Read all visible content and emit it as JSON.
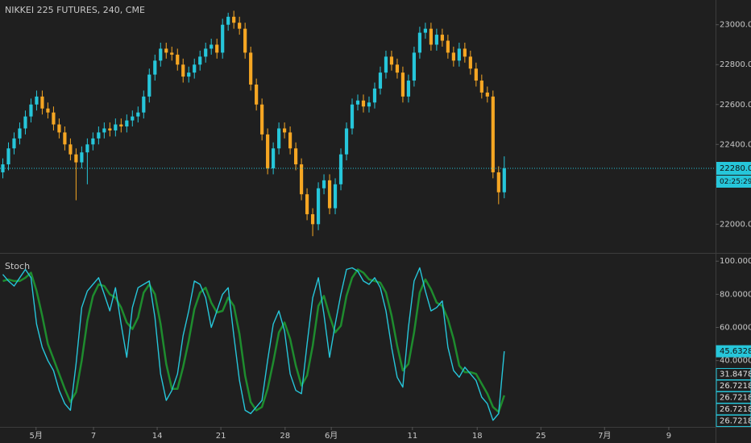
{
  "chart_data": [
    {
      "type": "candlestick",
      "title": "NIKKEI 225 FUTURES, 240, CME",
      "open": [
        22260,
        22300,
        22380,
        22430,
        22480,
        22540,
        22600,
        22640,
        22580,
        22560,
        22500,
        22460,
        22400,
        22350,
        22310,
        22360,
        22400,
        22430,
        22460,
        22480,
        22470,
        22500,
        22490,
        22520,
        22540,
        22560,
        22640,
        22750,
        22820,
        22880,
        22860,
        22850,
        22800,
        22740,
        22760,
        22800,
        22840,
        22880,
        22900,
        22860,
        23000,
        23040,
        23010,
        22980,
        22860,
        22700,
        22600,
        22450,
        22280,
        22380,
        22480,
        22460,
        22380,
        22300,
        22150,
        22050,
        22000,
        22180,
        22220,
        22080,
        22200,
        22350,
        22480,
        22600,
        22620,
        22590,
        22610,
        22680,
        22760,
        22840,
        22800,
        22760,
        22640,
        22720,
        22860,
        22960,
        22980,
        22900,
        22950,
        22920,
        22860,
        22820,
        22880,
        22840,
        22780,
        22720,
        22660,
        22640,
        22260,
        22160
      ],
      "high": [
        22330,
        22410,
        22460,
        22510,
        22570,
        22630,
        22670,
        22670,
        22610,
        22590,
        22530,
        22490,
        22430,
        22380,
        22390,
        22430,
        22460,
        22490,
        22510,
        22510,
        22530,
        22530,
        22550,
        22570,
        22590,
        22670,
        22780,
        22850,
        22910,
        22910,
        22890,
        22880,
        22830,
        22790,
        22830,
        22870,
        22910,
        22930,
        22930,
        23030,
        23060,
        23070,
        23040,
        23010,
        22890,
        22730,
        22630,
        22480,
        22410,
        22510,
        22510,
        22490,
        22410,
        22330,
        22180,
        22080,
        22210,
        22250,
        22250,
        22230,
        22380,
        22510,
        22630,
        22650,
        22650,
        22640,
        22710,
        22790,
        22870,
        22870,
        22830,
        22790,
        22750,
        22890,
        22990,
        23010,
        23010,
        22980,
        22980,
        22950,
        22890,
        22910,
        22910,
        22870,
        22810,
        22750,
        22690,
        22670,
        22290,
        22340
      ],
      "low": [
        22230,
        22270,
        22350,
        22400,
        22450,
        22510,
        22570,
        22550,
        22530,
        22470,
        22430,
        22370,
        22320,
        22120,
        22280,
        22200,
        22370,
        22400,
        22430,
        22440,
        22440,
        22460,
        22460,
        22490,
        22510,
        22530,
        22610,
        22720,
        22790,
        22830,
        22820,
        22770,
        22710,
        22710,
        22730,
        22770,
        22810,
        22850,
        22830,
        22830,
        22970,
        22980,
        22950,
        22830,
        22670,
        22570,
        22420,
        22250,
        22250,
        22350,
        22430,
        22350,
        22270,
        22120,
        22020,
        21940,
        21970,
        22150,
        22050,
        22050,
        22170,
        22320,
        22450,
        22570,
        22560,
        22560,
        22580,
        22650,
        22730,
        22770,
        22730,
        22610,
        22610,
        22690,
        22830,
        22930,
        22870,
        22870,
        22890,
        22830,
        22790,
        22790,
        22810,
        22750,
        22690,
        22630,
        22610,
        22230,
        22100,
        22130
      ],
      "close": [
        22300,
        22380,
        22430,
        22480,
        22540,
        22600,
        22640,
        22580,
        22560,
        22500,
        22460,
        22400,
        22350,
        22310,
        22360,
        22400,
        22430,
        22460,
        22480,
        22470,
        22500,
        22490,
        22520,
        22540,
        22560,
        22640,
        22750,
        22820,
        22880,
        22860,
        22850,
        22800,
        22740,
        22760,
        22800,
        22840,
        22880,
        22900,
        22860,
        23000,
        23040,
        23010,
        22980,
        22860,
        22700,
        22600,
        22450,
        22280,
        22380,
        22480,
        22460,
        22380,
        22300,
        22150,
        22050,
        22000,
        22180,
        22220,
        22080,
        22200,
        22350,
        22480,
        22600,
        22620,
        22590,
        22610,
        22680,
        22760,
        22840,
        22800,
        22760,
        22640,
        22720,
        22860,
        22960,
        22980,
        22900,
        22950,
        22920,
        22860,
        22820,
        22880,
        22840,
        22780,
        22720,
        22660,
        22640,
        22260,
        22160,
        22280
      ],
      "up_color": "#26c6da",
      "down_color": "#f5a623",
      "ylim": [
        21860,
        23124
      ],
      "yticks": [
        {
          "value": 22000,
          "label": "22000.0"
        },
        {
          "value": 22200,
          "label": "22200.0"
        },
        {
          "value": 22400,
          "label": "22400.0"
        },
        {
          "value": 22600,
          "label": "22600.0"
        },
        {
          "value": 22800,
          "label": "22800.0"
        },
        {
          "value": 23000,
          "label": "23000.0"
        }
      ],
      "xlim": [
        -0.5,
        126.5
      ],
      "xticks": [
        {
          "value": 5.9,
          "label": "5月"
        },
        {
          "value": 16.1,
          "label": "7"
        },
        {
          "value": 27.4,
          "label": "14"
        },
        {
          "value": 38.7,
          "label": "21"
        },
        {
          "value": 50.1,
          "label": "28"
        },
        {
          "value": 58.3,
          "label": "6月"
        },
        {
          "value": 72.7,
          "label": "11"
        },
        {
          "value": 84.2,
          "label": "18"
        },
        {
          "value": 95.5,
          "label": "25"
        },
        {
          "value": 106.8,
          "label": "7月"
        },
        {
          "value": 118.2,
          "label": "9"
        }
      ],
      "last_price": {
        "value": 22280,
        "label": "22280.0"
      },
      "countdown": "02:25:29",
      "price_line_color": "#26c6da"
    },
    {
      "type": "line",
      "title": "Stoch",
      "series": [
        {
          "color": "#26c6da",
          "values": [
            92,
            88,
            85,
            90,
            95,
            90,
            62,
            48,
            40,
            34,
            22,
            14,
            10,
            38,
            72,
            82,
            86,
            90,
            80,
            70,
            84,
            62,
            42,
            72,
            84,
            86,
            88,
            66,
            32,
            16,
            22,
            32,
            55,
            70,
            88,
            86,
            78,
            60,
            70,
            80,
            84,
            55,
            28,
            10,
            8,
            12,
            16,
            40,
            62,
            70,
            58,
            32,
            22,
            20,
            50,
            78,
            90,
            68,
            42,
            62,
            80,
            95,
            96,
            94,
            88,
            86,
            90,
            84,
            70,
            48,
            30,
            24,
            60,
            88,
            96,
            82,
            70,
            72,
            76,
            48,
            34,
            30,
            36,
            32,
            28,
            18,
            14,
            4,
            8,
            45.6328
          ]
        },
        {
          "color": "#1e8c2e",
          "values": [
            88,
            89,
            88,
            88,
            90,
            93,
            82,
            67,
            50,
            41,
            32,
            23,
            15,
            21,
            40,
            64,
            79,
            86,
            85,
            80,
            78,
            72,
            63,
            59,
            66,
            81,
            86,
            80,
            62,
            38,
            23,
            23,
            36,
            52,
            71,
            81,
            84,
            75,
            69,
            70,
            78,
            73,
            56,
            31,
            15,
            10,
            12,
            23,
            39,
            57,
            63,
            53,
            37,
            25,
            31,
            49,
            73,
            79,
            67,
            57,
            61,
            79,
            90,
            95,
            93,
            89,
            88,
            87,
            81,
            67,
            49,
            34,
            38,
            57,
            81,
            89,
            83,
            75,
            73,
            65,
            53,
            37,
            33,
            33,
            32,
            26,
            20,
            12,
            9,
            19
          ]
        }
      ],
      "ylim": [
        0,
        104
      ],
      "yticks": [
        {
          "value": 40,
          "label": "40.0000"
        },
        {
          "value": 60,
          "label": "60.0000"
        },
        {
          "value": 80,
          "label": "80.0000"
        },
        {
          "value": 100,
          "label": "100.0000"
        }
      ],
      "last_value_labels": [
        45.6328,
        31.8478,
        26.7218,
        26.7218,
        26.7218,
        26.7218
      ],
      "label_color": "#26c6da"
    }
  ]
}
